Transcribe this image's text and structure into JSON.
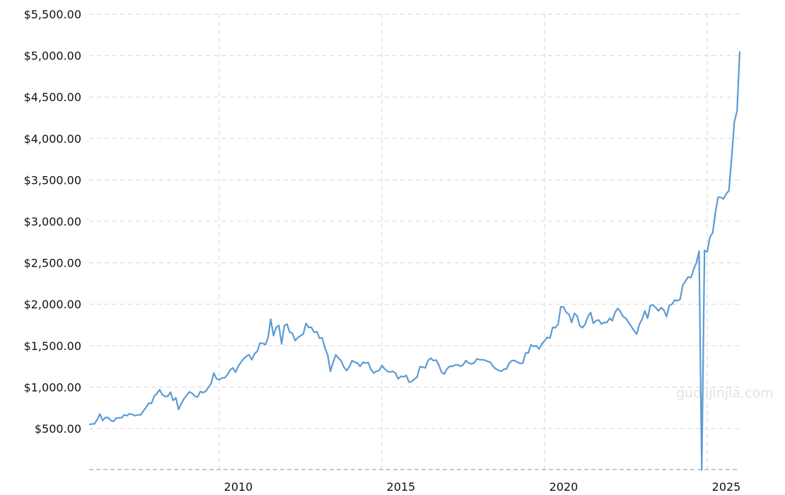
{
  "chart_data": {
    "type": "line",
    "title": "",
    "xlabel": "",
    "ylabel": "",
    "xlim": [
      "2006-01",
      "2026-01"
    ],
    "ylim": [
      0,
      5500
    ],
    "grid": true,
    "line_color": "#5b9bd5",
    "watermark": "guojijinjia.com",
    "y_ticks": [
      {
        "value": 500,
        "label": "$500.00"
      },
      {
        "value": 1000,
        "label": "$1,000.00"
      },
      {
        "value": 1500,
        "label": "$1,500.00"
      },
      {
        "value": 2000,
        "label": "$2,000.00"
      },
      {
        "value": 2500,
        "label": "$2,500.00"
      },
      {
        "value": 3000,
        "label": "$3,000.00"
      },
      {
        "value": 3500,
        "label": "$3,500.00"
      },
      {
        "value": 4000,
        "label": "$4,000.00"
      },
      {
        "value": 4500,
        "label": "$4,500.00"
      },
      {
        "value": 5000,
        "label": "$5,000.00"
      },
      {
        "value": 5500,
        "label": "$5,500.00"
      }
    ],
    "x_ticks": [
      {
        "value": 2010,
        "label": "2010"
      },
      {
        "value": 2015,
        "label": "2015"
      },
      {
        "value": 2020,
        "label": "2020"
      },
      {
        "value": 2025,
        "label": "2025"
      }
    ],
    "start": "2006-01",
    "frequency": "monthly",
    "values": [
      549,
      555,
      557,
      610,
      676,
      596,
      633,
      632,
      598,
      585,
      627,
      629,
      631,
      665,
      655,
      679,
      667,
      655,
      665,
      665,
      712,
      754,
      806,
      803,
      889,
      922,
      968,
      909,
      888,
      889,
      939,
      839,
      870,
      730,
      800,
      860,
      900,
      943,
      924,
      890,
      880,
      946,
      934,
      949,
      996,
      1043,
      1170,
      1100,
      1090,
      1110,
      1113,
      1148,
      1205,
      1232,
      1180,
      1250,
      1300,
      1342,
      1370,
      1391,
      1330,
      1400,
      1430,
      1530,
      1530,
      1510,
      1600,
      1820,
      1620,
      1720,
      1745,
      1520,
      1740,
      1760,
      1660,
      1650,
      1560,
      1596,
      1620,
      1640,
      1770,
      1720,
      1721,
      1660,
      1670,
      1590,
      1593,
      1470,
      1390,
      1190,
      1300,
      1390,
      1349,
      1316,
      1240,
      1200,
      1244,
      1320,
      1300,
      1290,
      1250,
      1300,
      1290,
      1296,
      1210,
      1170,
      1190,
      1200,
      1260,
      1220,
      1190,
      1180,
      1190,
      1170,
      1100,
      1130,
      1124,
      1140,
      1060,
      1068,
      1097,
      1120,
      1246,
      1242,
      1230,
      1320,
      1350,
      1320,
      1326,
      1266,
      1180,
      1157,
      1220,
      1250,
      1250,
      1266,
      1270,
      1250,
      1270,
      1320,
      1290,
      1280,
      1290,
      1340,
      1330,
      1330,
      1324,
      1310,
      1300,
      1250,
      1220,
      1202,
      1190,
      1215,
      1221,
      1290,
      1320,
      1320,
      1300,
      1286,
      1290,
      1410,
      1413,
      1510,
      1490,
      1500,
      1460,
      1520,
      1560,
      1600,
      1591,
      1720,
      1716,
      1760,
      1970,
      1968,
      1900,
      1880,
      1780,
      1890,
      1860,
      1740,
      1718,
      1760,
      1850,
      1900,
      1770,
      1800,
      1810,
      1760,
      1780,
      1780,
      1830,
      1800,
      1900,
      1950,
      1910,
      1850,
      1830,
      1780,
      1730,
      1680,
      1640,
      1760,
      1820,
      1920,
      1830,
      1980,
      1992,
      1960,
      1920,
      1960,
      1930,
      1850,
      1985,
      2000,
      2050,
      2040,
      2060,
      2230,
      2280,
      2330,
      2320,
      2420,
      2500,
      2640,
      0,
      2650,
      2630,
      2810,
      2860,
      3100,
      3290,
      3290,
      3270,
      3330,
      3370,
      3760,
      4200,
      4330,
      5050
    ]
  }
}
